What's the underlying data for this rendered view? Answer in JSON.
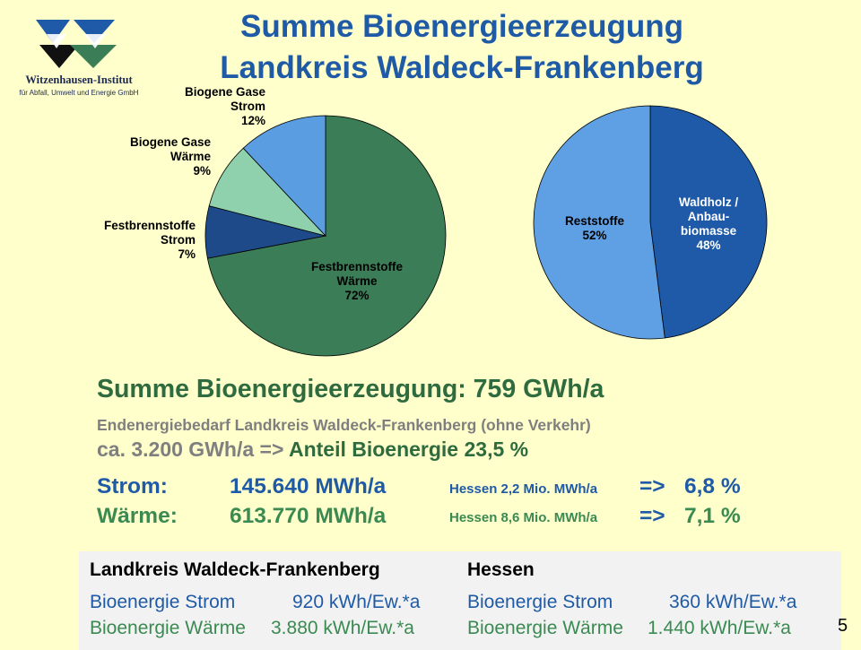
{
  "header": {
    "title_line1": "Summe Bioenergieerzeugung",
    "title_line2": "Landkreis Waldeck-Frankenberg",
    "logo_name": "Witzenhausen-Institut",
    "logo_sub": "für Abfall, Umwelt und Energie GmbH"
  },
  "chart_data": [
    {
      "type": "pie",
      "slices": [
        {
          "label_lines": [
            "Festbrennstoffe",
            "Wärme",
            "72%"
          ],
          "value": 72,
          "color": "#3b7d57"
        },
        {
          "label_lines": [
            "Festbrennstoffe",
            "Strom",
            "7%"
          ],
          "value": 7,
          "color": "#1e4a8a"
        },
        {
          "label_lines": [
            "Biogene Gase",
            "Wärme",
            "9%"
          ],
          "value": 9,
          "color": "#8fd0ad"
        },
        {
          "label_lines": [
            "Biogene Gase",
            "Strom",
            "12%"
          ],
          "value": 12,
          "color": "#5a9de0"
        }
      ]
    },
    {
      "type": "pie",
      "slices": [
        {
          "label_lines": [
            "Waldholz /",
            "Anbau-",
            "biomasse",
            "48%"
          ],
          "value": 48,
          "color": "#1e5aa8"
        },
        {
          "label_lines": [
            "Reststoffe",
            "52%"
          ],
          "value": 52,
          "color": "#5fa0e4"
        }
      ]
    }
  ],
  "summary": {
    "total": "Summe Bioenergieerzeugung: 759 GWh/a",
    "need_line": "Endenergiebedarf Landkreis Waldeck-Frankenberg  (ohne Verkehr)",
    "need_value": "ca. 3.200 GWh/a =>",
    "share_label": "Anteil Bioenergie",
    "share_value": "23,5 %"
  },
  "rows": [
    {
      "label": "Strom:",
      "value": "145.640 MWh/a",
      "hessen": "Hessen 2,2 Mio. MWh/a",
      "arrow": "=>",
      "pct": "6,8 %"
    },
    {
      "label": "Wärme:",
      "value": "613.770 MWh/a",
      "hessen": "Hessen 8,6 Mio. MWh/a",
      "arrow": "=>",
      "pct": "7,1 %"
    }
  ],
  "table": {
    "left_header": "Landkreis Waldeck-Frankenberg",
    "right_header": "Hessen",
    "left_strom_label": "Bioenergie Strom",
    "left_strom_value": "920 kWh/Ew.*a",
    "left_waerme_label": "Bioenergie Wärme",
    "left_waerme_value": "3.880 kWh/Ew.*a",
    "right_strom_label": "Bioenergie Strom",
    "right_strom_value": "360 kWh/Ew.*a",
    "right_waerme_label": "Bioenergie Wärme",
    "right_waerme_value": "1.440 kWh/Ew.*a"
  },
  "page_number": "5"
}
